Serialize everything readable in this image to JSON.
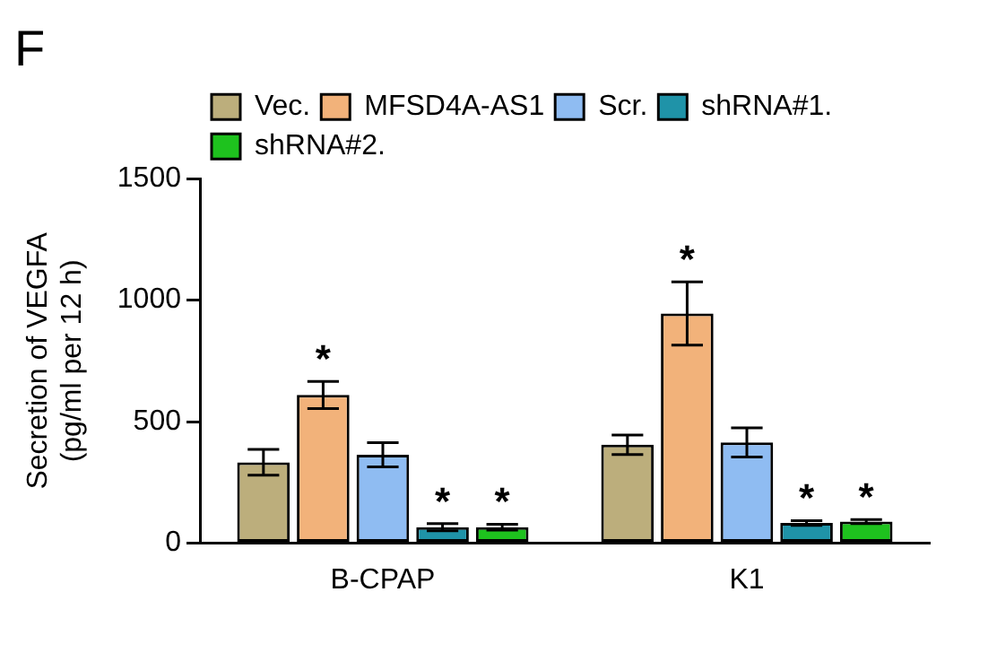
{
  "chart_data": {
    "type": "bar",
    "title": "F",
    "ylabel": "Secretion of VEGFA\n(pg/ml per 12 h)",
    "categories": [
      "B-CPAP",
      "K1"
    ],
    "series": [
      {
        "name": "Vec.",
        "color": "#bcae7c",
        "values": [
          333,
          405
        ],
        "errors": [
          53,
          40
        ]
      },
      {
        "name": "MFSD4A-AS1",
        "color": "#f2b27a",
        "values": [
          610,
          945
        ],
        "errors": [
          56,
          130
        ],
        "value_labels": [
          "*",
          "*"
        ]
      },
      {
        "name": "Scr.",
        "color": "#8fbcf2",
        "values": [
          364,
          415
        ],
        "errors": [
          50,
          60
        ]
      },
      {
        "name": "shRNA#1.",
        "color": "#1f93a8",
        "values": [
          66,
          83
        ],
        "errors": [
          15,
          10
        ],
        "value_labels": [
          "*",
          "*"
        ]
      },
      {
        "name": "shRNA#2.",
        "color": "#1ec21e",
        "values": [
          66,
          89
        ],
        "errors": [
          12,
          8
        ],
        "value_labels": [
          "*",
          "*"
        ]
      }
    ],
    "ylim": [
      0,
      1500
    ],
    "yticks": [
      0,
      500,
      1000,
      1500
    ],
    "grid": false,
    "legend": "top"
  }
}
